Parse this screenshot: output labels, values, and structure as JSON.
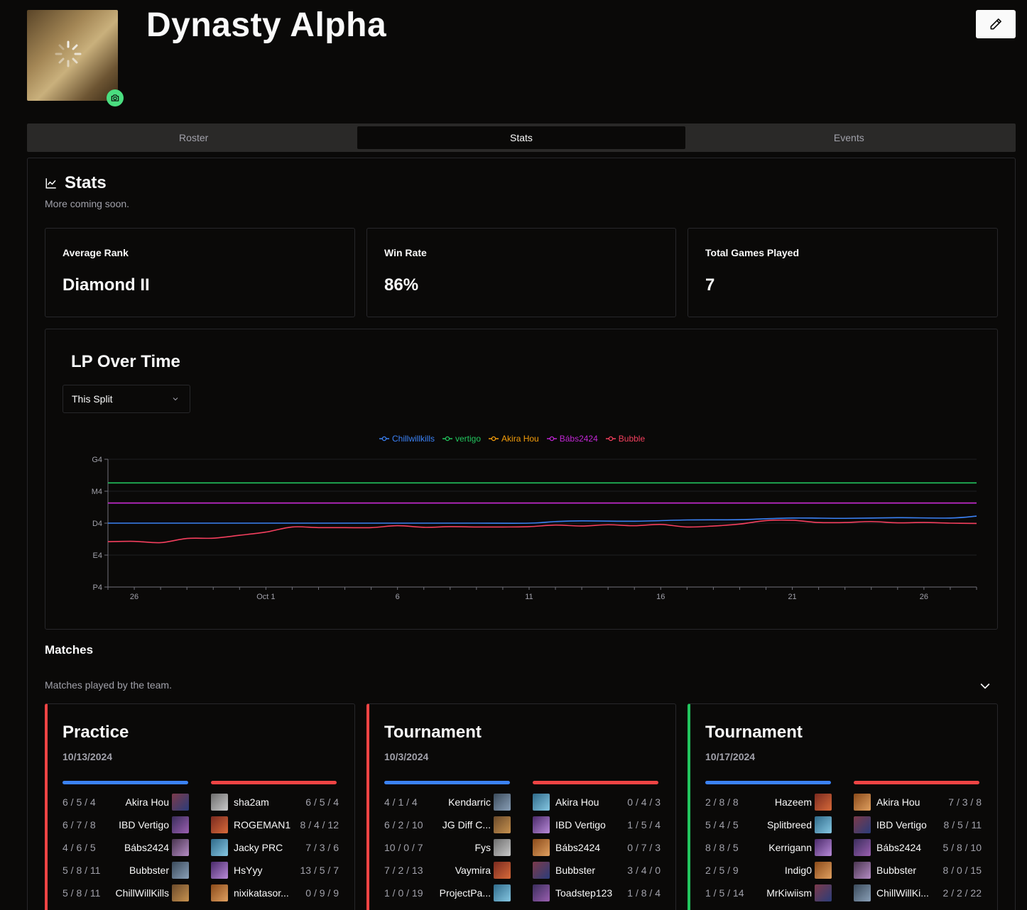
{
  "team": {
    "name": "Dynasty Alpha"
  },
  "tabs": [
    {
      "label": "Roster",
      "active": false
    },
    {
      "label": "Stats",
      "active": true
    },
    {
      "label": "Events",
      "active": false
    }
  ],
  "stats": {
    "title": "Stats",
    "subtitle": "More coming soon.",
    "cards": [
      {
        "label": "Average Rank",
        "value": "Diamond II"
      },
      {
        "label": "Win Rate",
        "value": "86%"
      },
      {
        "label": "Total Games Played",
        "value": "7"
      }
    ]
  },
  "chart": {
    "title": "LP Over Time",
    "range_select": "This Split"
  },
  "chart_data": {
    "type": "line",
    "title": "LP Over Time",
    "xlabel": "",
    "ylabel": "",
    "x_ticks": [
      "26",
      "Oct 1",
      "6",
      "11",
      "16",
      "21",
      "26"
    ],
    "y_ticks": [
      "P4",
      "E4",
      "D4",
      "M4",
      "G4"
    ],
    "ylim": [
      0,
      4
    ],
    "xlim": [
      0,
      33
    ],
    "series": [
      {
        "name": "Chillwillkills",
        "color": "#3b82f6",
        "x": [
          0,
          2,
          4,
          6,
          8,
          10,
          12,
          14,
          16,
          17,
          18,
          20,
          22,
          24,
          26,
          28,
          30,
          32,
          33
        ],
        "values": [
          2.0,
          2.0,
          2.0,
          2.0,
          2.0,
          2.0,
          2.0,
          2.0,
          2.0,
          2.05,
          2.07,
          2.06,
          2.1,
          2.11,
          2.16,
          2.15,
          2.17,
          2.16,
          2.22
        ]
      },
      {
        "name": "vertigo",
        "color": "#22c55e",
        "x": [
          0,
          33
        ],
        "values": [
          3.26,
          3.26
        ]
      },
      {
        "name": "Akira Hou",
        "color": "#f59e0b",
        "x": [
          0,
          33
        ],
        "values": [
          2.63,
          2.63
        ]
      },
      {
        "name": "Bábs2424",
        "color": "#c026d3",
        "x": [
          0,
          33
        ],
        "values": [
          2.63,
          2.63
        ]
      },
      {
        "name": "Bubble",
        "color": "#f43f5e",
        "x": [
          0,
          1,
          2,
          3,
          4,
          5,
          6,
          7,
          8,
          9,
          10,
          11,
          12,
          13,
          14,
          15,
          16,
          17,
          18,
          19,
          20,
          21,
          22,
          23,
          24,
          25,
          26,
          27,
          28,
          29,
          30,
          31,
          32,
          33
        ],
        "values": [
          1.42,
          1.43,
          1.39,
          1.52,
          1.53,
          1.62,
          1.72,
          1.88,
          1.86,
          1.86,
          1.86,
          1.92,
          1.87,
          1.89,
          1.88,
          1.88,
          1.89,
          1.94,
          1.91,
          1.95,
          1.92,
          1.96,
          1.88,
          1.91,
          1.97,
          2.08,
          2.09,
          2.02,
          2.02,
          2.05,
          2.01,
          2.02,
          2.0,
          1.99
        ]
      }
    ]
  },
  "matches": {
    "title": "Matches",
    "subtitle": "Matches played by the team.",
    "cards": [
      {
        "type": "Practice",
        "date": "10/13/2024",
        "result_color": "#ef4444",
        "blue": [
          {
            "kda": "6 / 5 / 4",
            "name": "Akira Hou"
          },
          {
            "kda": "6 / 7 / 8",
            "name": "IBD Vertigo"
          },
          {
            "kda": "4 / 6 / 5",
            "name": "Bábs2424"
          },
          {
            "kda": "5 / 8 / 11",
            "name": "Bubbster"
          },
          {
            "kda": "5 / 8 / 11",
            "name": "ChillWillKills"
          }
        ],
        "red": [
          {
            "kda": "6 / 5 / 4",
            "name": "sha2am"
          },
          {
            "kda": "8 / 4 / 12",
            "name": "ROGEMAN1"
          },
          {
            "kda": "7 / 3 / 6",
            "name": "Jacky PRC"
          },
          {
            "kda": "13 / 5 / 7",
            "name": "HsYyy"
          },
          {
            "kda": "0 / 9 / 9",
            "name": "nixikatasor..."
          }
        ]
      },
      {
        "type": "Tournament",
        "date": "10/3/2024",
        "result_color": "#ef4444",
        "blue": [
          {
            "kda": "4 / 1 / 4",
            "name": "Kendarric"
          },
          {
            "kda": "6 / 2 / 10",
            "name": "JG Diff C..."
          },
          {
            "kda": "10 / 0 / 7",
            "name": "Fys"
          },
          {
            "kda": "7 / 2 / 13",
            "name": "Vaymira"
          },
          {
            "kda": "1 / 0 / 19",
            "name": "ProjectPa..."
          }
        ],
        "red": [
          {
            "kda": "0 / 4 / 3",
            "name": "Akira Hou"
          },
          {
            "kda": "1 / 5 / 4",
            "name": "IBD Vertigo"
          },
          {
            "kda": "0 / 7 / 3",
            "name": "Bábs2424"
          },
          {
            "kda": "3 / 4 / 0",
            "name": "Bubbster"
          },
          {
            "kda": "1 / 8 / 4",
            "name": "Toadstep123"
          }
        ]
      },
      {
        "type": "Tournament",
        "date": "10/17/2024",
        "result_color": "#22c55e",
        "blue": [
          {
            "kda": "2 / 8 / 8",
            "name": "Hazeem"
          },
          {
            "kda": "5 / 4 / 5",
            "name": "Splitbreed"
          },
          {
            "kda": "8 / 8 / 5",
            "name": "Kerrigann"
          },
          {
            "kda": "2 / 5 / 9",
            "name": "Indig0"
          },
          {
            "kda": "1 / 5 / 14",
            "name": "MrKiwiism"
          }
        ],
        "red": [
          {
            "kda": "7 / 3 / 8",
            "name": "Akira Hou"
          },
          {
            "kda": "8 / 5 / 11",
            "name": "IBD Vertigo"
          },
          {
            "kda": "5 / 8 / 10",
            "name": "Bábs2424"
          },
          {
            "kda": "8 / 0 / 15",
            "name": "Bubbster"
          },
          {
            "kda": "2 / 2 / 22",
            "name": "ChillWillKi..."
          }
        ]
      }
    ]
  },
  "colors": {
    "blue_team": "#3b82f6",
    "red_team": "#ef4444",
    "accent_green": "#4ade80"
  }
}
